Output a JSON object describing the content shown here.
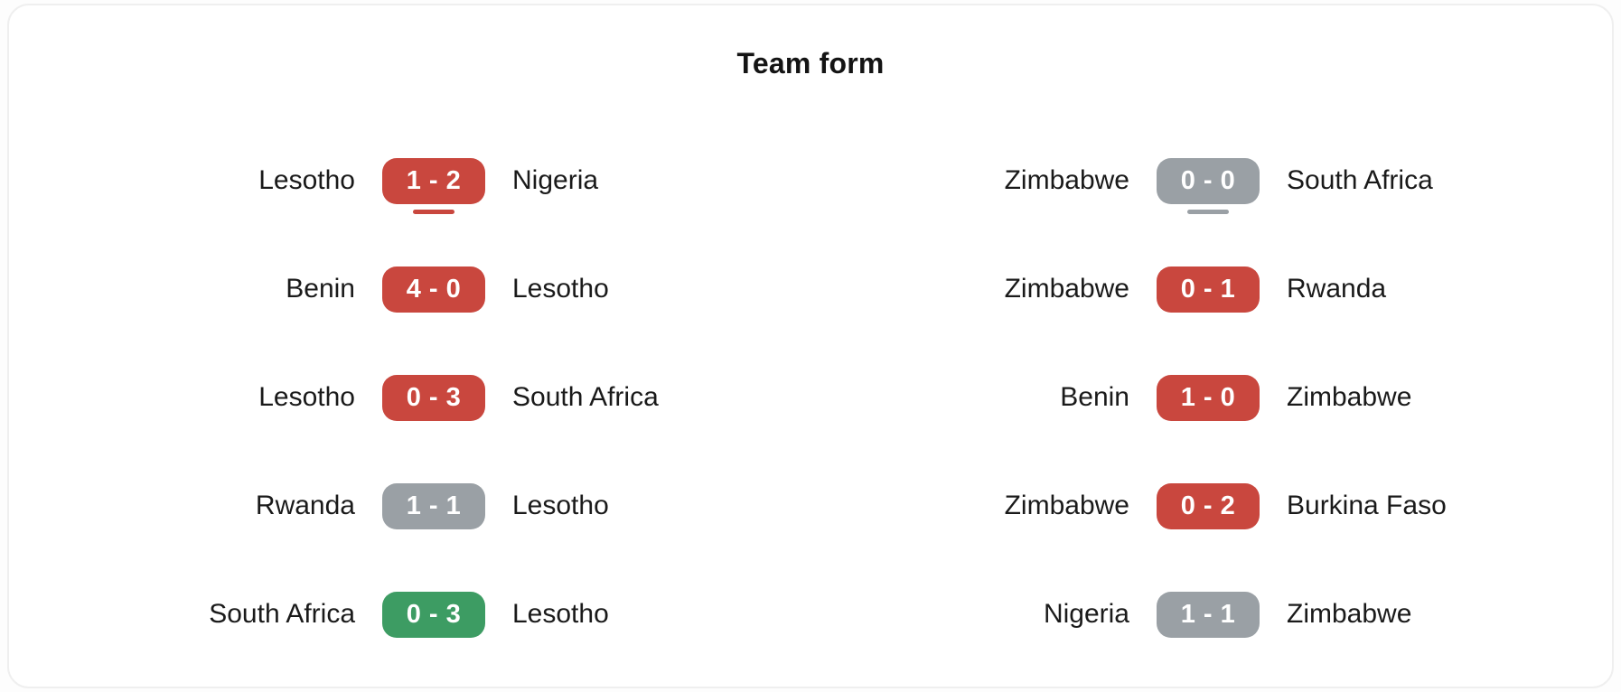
{
  "title": "Team form",
  "colors": {
    "win": "#3d9c63",
    "draw": "#9aa0a5",
    "loss": "#c9473e"
  },
  "columns": [
    {
      "side": "left",
      "matches": [
        {
          "home": "Lesotho",
          "score": "1 - 2",
          "away": "Nigeria",
          "result": "loss",
          "highlight": true
        },
        {
          "home": "Benin",
          "score": "4 - 0",
          "away": "Lesotho",
          "result": "loss",
          "highlight": false
        },
        {
          "home": "Lesotho",
          "score": "0 - 3",
          "away": "South Africa",
          "result": "loss",
          "highlight": false
        },
        {
          "home": "Rwanda",
          "score": "1 - 1",
          "away": "Lesotho",
          "result": "draw",
          "highlight": false
        },
        {
          "home": "South Africa",
          "score": "0 - 3",
          "away": "Lesotho",
          "result": "win",
          "highlight": false
        }
      ]
    },
    {
      "side": "right",
      "matches": [
        {
          "home": "Zimbabwe",
          "score": "0 - 0",
          "away": "South Africa",
          "result": "draw",
          "highlight": true
        },
        {
          "home": "Zimbabwe",
          "score": "0 - 1",
          "away": "Rwanda",
          "result": "loss",
          "highlight": false
        },
        {
          "home": "Benin",
          "score": "1 - 0",
          "away": "Zimbabwe",
          "result": "loss",
          "highlight": false
        },
        {
          "home": "Zimbabwe",
          "score": "0 - 2",
          "away": "Burkina Faso",
          "result": "loss",
          "highlight": false
        },
        {
          "home": "Nigeria",
          "score": "1 - 1",
          "away": "Zimbabwe",
          "result": "draw",
          "highlight": false
        }
      ]
    }
  ]
}
